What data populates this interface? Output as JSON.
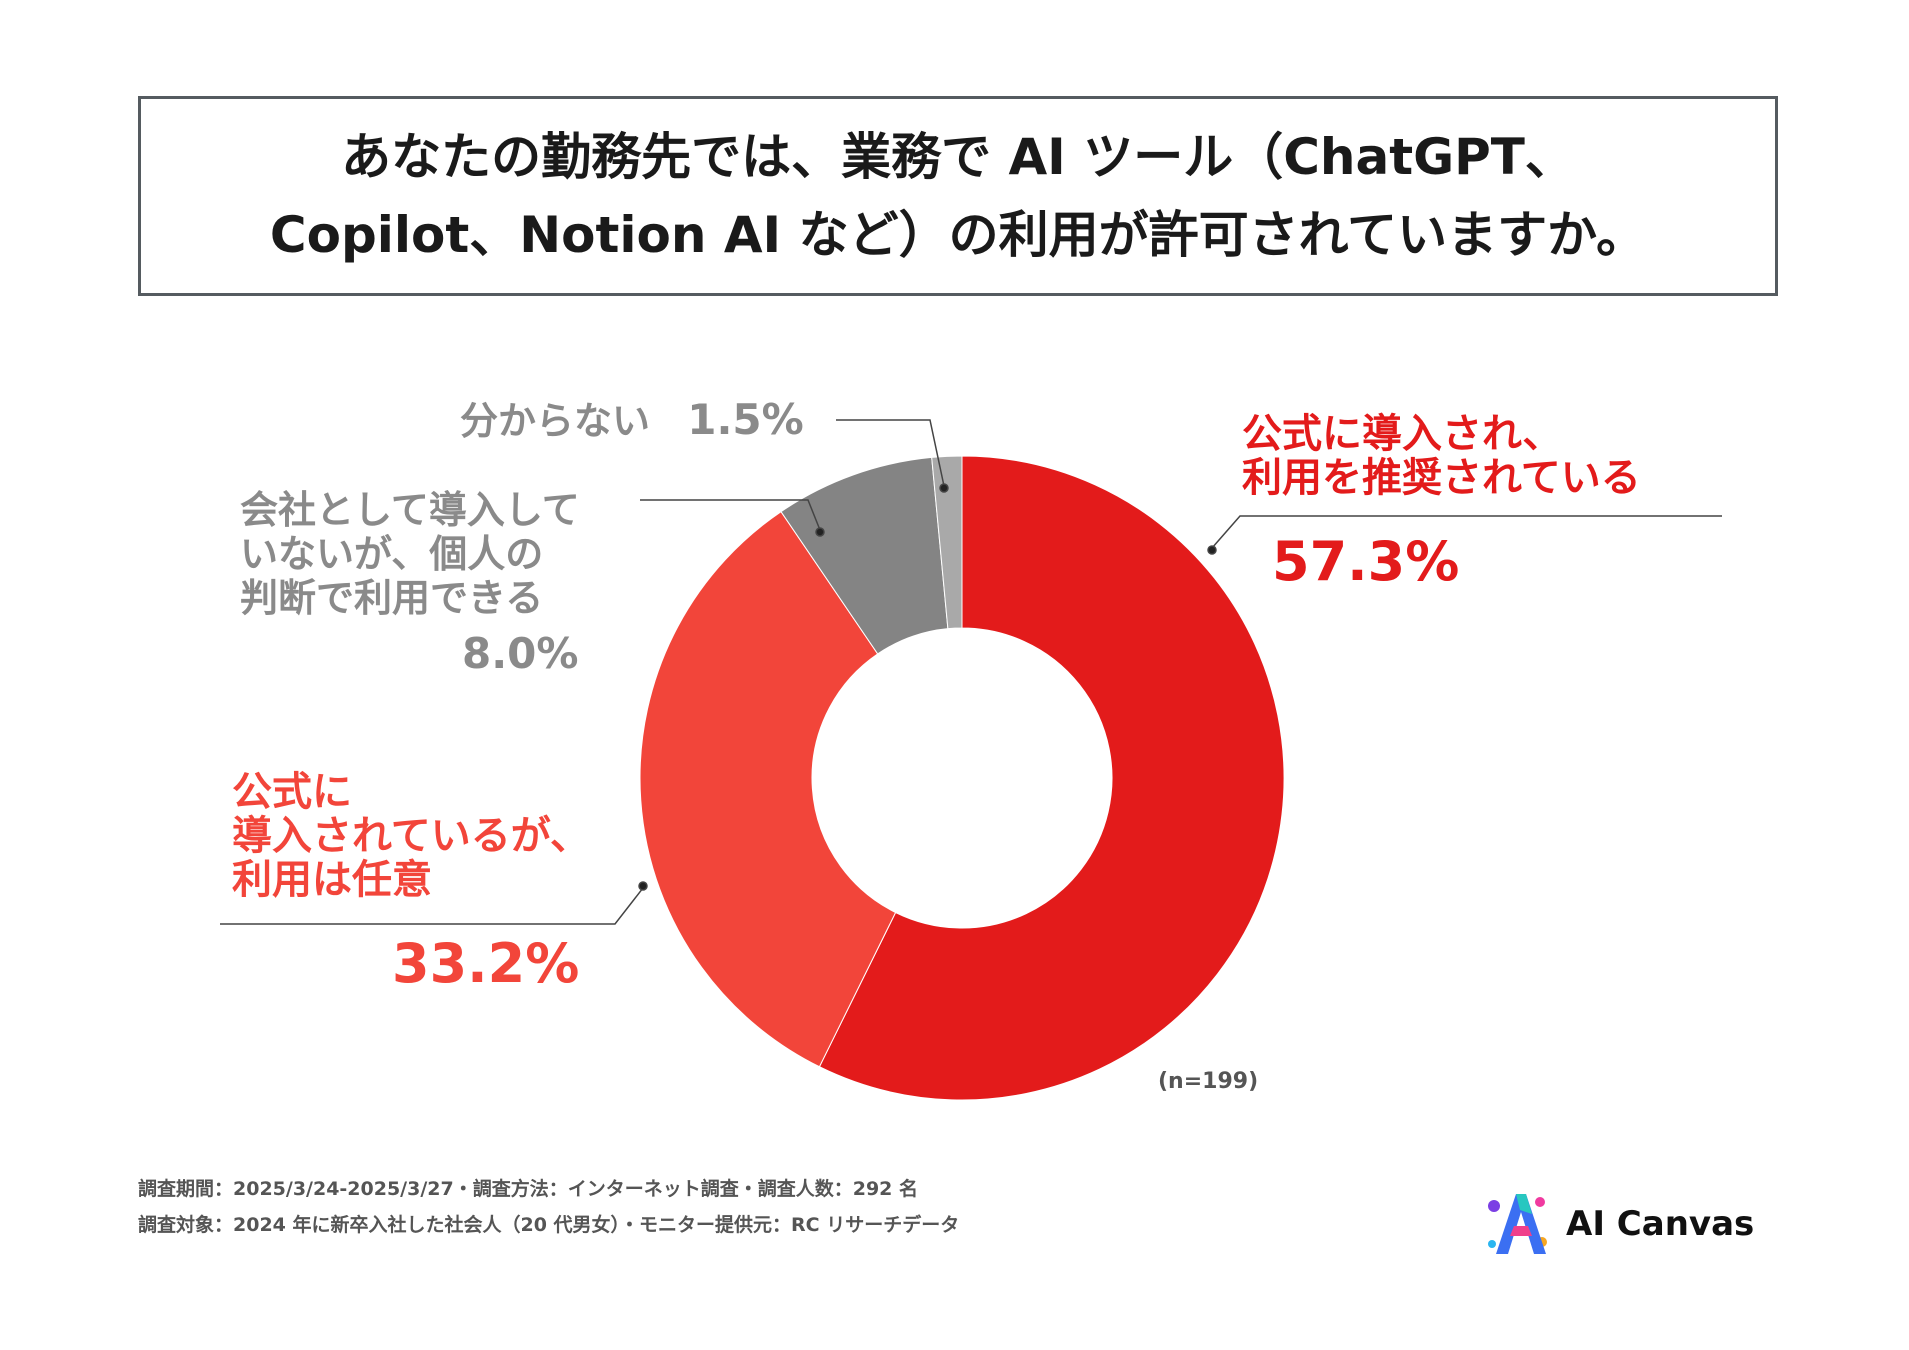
{
  "title": {
    "line1": "あなたの勤務先では、業務で AI ツール（ChatGPT、",
    "line2": "Copilot、Notion AI など）の利用が許可されていますか。"
  },
  "chart_data": {
    "type": "pie",
    "donut": true,
    "slices": [
      {
        "label_lines": [
          "公式に導入され、",
          "利用を推奨されている"
        ],
        "value": 57.3,
        "value_label": "57.3%",
        "color": "#e31b1b"
      },
      {
        "label_lines": [
          "公式に",
          "導入されているが、",
          "利用は任意"
        ],
        "value": 33.2,
        "value_label": "33.2%",
        "color": "#f2453a"
      },
      {
        "label_lines": [
          "会社として導入して",
          "いないが、個人の",
          "判断で利用できる"
        ],
        "value": 8.0,
        "value_label": "8.0%",
        "color": "#848484"
      },
      {
        "label_lines": [
          "分からない"
        ],
        "value": 1.5,
        "value_label": "1.5%",
        "color": "#a9a9a9"
      }
    ],
    "sample_note": "(n=199)"
  },
  "footer": {
    "line1": "調査期間：2025/3/24-2025/3/27・調査方法：インターネット調査・調査人数：292 名",
    "line2": "調査対象：2024 年に新卒入社した社会人（20 代男女）・モニター提供元：RC リサーチデータ"
  },
  "brand": {
    "name": "AI Canvas",
    "icon": "ai-canvas-logo-icon"
  }
}
